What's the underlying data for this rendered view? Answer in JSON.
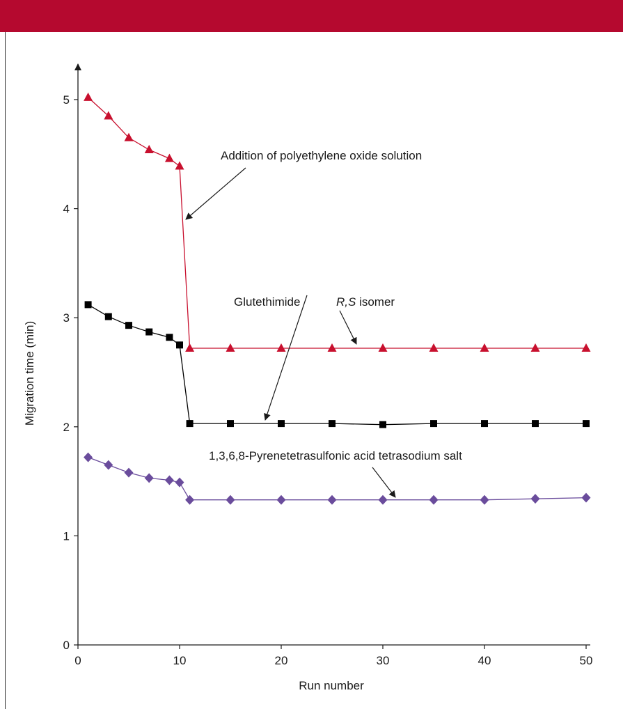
{
  "colors": {
    "banner": "#b5092f",
    "axis": "#1a1a1a",
    "rs_isomer": "#c8102e",
    "glutethimide": "#000000",
    "pyrene": "#6a4c9c"
  },
  "chart_data": {
    "type": "line",
    "title": "",
    "xlabel": "Run number",
    "ylabel": "Migration time (min)",
    "xlim": [
      0,
      50
    ],
    "ylim": [
      0,
      5
    ],
    "x_ticks": [
      0,
      10,
      20,
      30,
      40,
      50
    ],
    "y_ticks": [
      0,
      1,
      2,
      3,
      4,
      5
    ],
    "grid": false,
    "legend": "none",
    "series": [
      {
        "name": "R,S isomer",
        "marker": "triangle",
        "color": "#c8102e",
        "x": [
          1,
          3,
          5,
          7,
          9,
          10,
          11,
          15,
          20,
          25,
          30,
          35,
          40,
          45,
          50
        ],
        "y": [
          5.02,
          4.85,
          4.65,
          4.54,
          4.46,
          4.39,
          2.72,
          2.72,
          2.72,
          2.72,
          2.72,
          2.72,
          2.72,
          2.72,
          2.72
        ]
      },
      {
        "name": "Glutethimide",
        "marker": "square",
        "color": "#000000",
        "x": [
          1,
          3,
          5,
          7,
          9,
          10,
          11,
          15,
          20,
          25,
          30,
          35,
          40,
          45,
          50
        ],
        "y": [
          3.12,
          3.01,
          2.93,
          2.87,
          2.82,
          2.75,
          2.03,
          2.03,
          2.03,
          2.03,
          2.02,
          2.03,
          2.03,
          2.03,
          2.03
        ]
      },
      {
        "name": "1,3,6,8-Pyrenetetrasulfonic acid tetrasodium salt",
        "marker": "diamond",
        "color": "#6a4c9c",
        "x": [
          1,
          3,
          5,
          7,
          9,
          10,
          11,
          15,
          20,
          25,
          30,
          35,
          40,
          45,
          50
        ],
        "y": [
          1.72,
          1.65,
          1.58,
          1.53,
          1.51,
          1.49,
          1.33,
          1.33,
          1.33,
          1.33,
          1.33,
          1.33,
          1.33,
          1.34,
          1.35
        ]
      }
    ],
    "annotations": [
      {
        "id": "peo",
        "text": "Addition of polyethylene oxide solution"
      },
      {
        "id": "glut",
        "text": "Glutethimide"
      },
      {
        "id": "rs",
        "text_italic": "R,S",
        "text": " isomer"
      },
      {
        "id": "pyr",
        "text": "1,3,6,8-Pyrenetetrasulfonic acid tetrasodium salt"
      }
    ]
  }
}
